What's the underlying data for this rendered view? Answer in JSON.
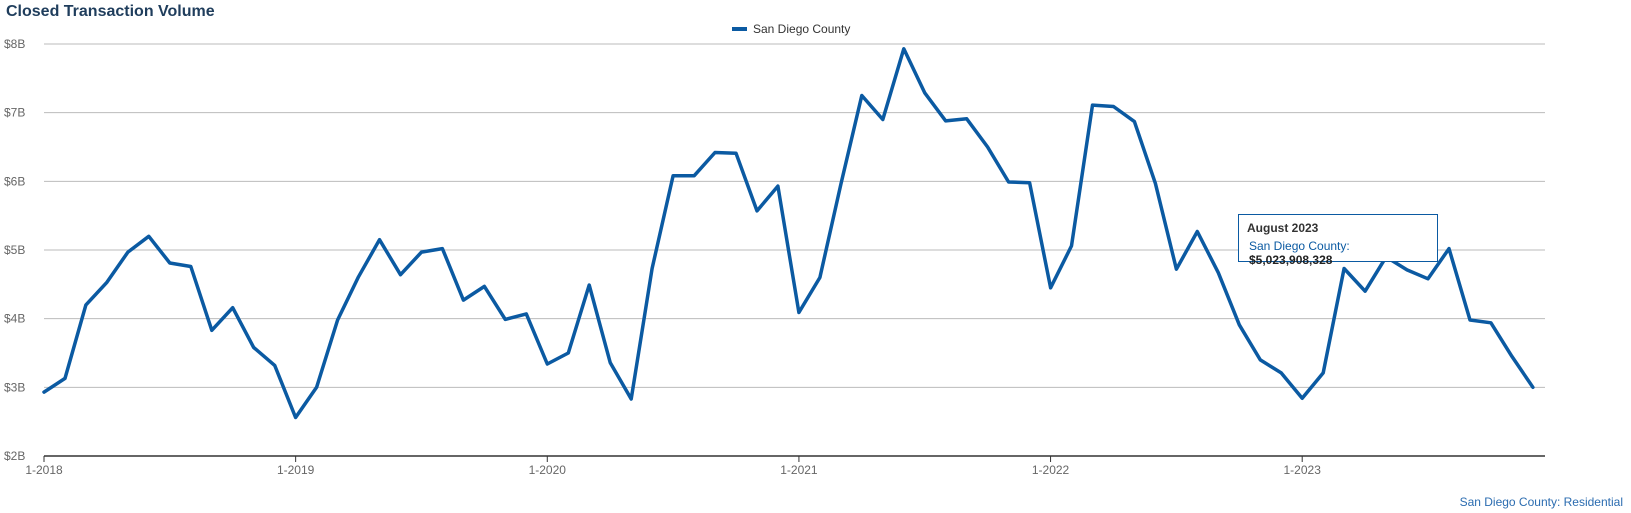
{
  "title": "Closed Transaction Volume",
  "source_note": "San Diego County: Residential",
  "colors": {
    "series": "#0b5aa2",
    "grid": "#bbbbbb",
    "axis": "#333333"
  },
  "tooltip": {
    "title": "August 2023",
    "series_label": "San Diego County:",
    "value": "$5,023,908,328"
  },
  "chart_data": {
    "type": "line",
    "legend_position": "top-center",
    "grid": true,
    "ylim": [
      2,
      8
    ],
    "y_unit": "billions USD",
    "y_ticks": [
      {
        "value": 2,
        "label": "$2B"
      },
      {
        "value": 3,
        "label": "$3B"
      },
      {
        "value": 4,
        "label": "$4B"
      },
      {
        "value": 5,
        "label": "$5B"
      },
      {
        "value": 6,
        "label": "$6B"
      },
      {
        "value": 7,
        "label": "$7B"
      },
      {
        "value": 8,
        "label": "$8B"
      }
    ],
    "x_ticks": [
      "1-2018",
      "1-2019",
      "1-2020",
      "1-2021",
      "1-2022",
      "1-2023"
    ],
    "x": [
      "1-2018",
      "2-2018",
      "3-2018",
      "4-2018",
      "5-2018",
      "6-2018",
      "7-2018",
      "8-2018",
      "9-2018",
      "10-2018",
      "11-2018",
      "12-2018",
      "1-2019",
      "2-2019",
      "3-2019",
      "4-2019",
      "5-2019",
      "6-2019",
      "7-2019",
      "8-2019",
      "9-2019",
      "10-2019",
      "11-2019",
      "12-2019",
      "1-2020",
      "2-2020",
      "3-2020",
      "4-2020",
      "5-2020",
      "6-2020",
      "7-2020",
      "8-2020",
      "9-2020",
      "10-2020",
      "11-2020",
      "12-2020",
      "1-2021",
      "2-2021",
      "3-2021",
      "4-2021",
      "5-2021",
      "6-2021",
      "7-2021",
      "8-2021",
      "9-2021",
      "10-2021",
      "11-2021",
      "12-2021",
      "1-2022",
      "2-2022",
      "3-2022",
      "4-2022",
      "5-2022",
      "6-2022",
      "7-2022",
      "8-2022",
      "9-2022",
      "10-2022",
      "11-2022",
      "12-2022",
      "1-2023",
      "2-2023",
      "3-2023",
      "4-2023",
      "5-2023",
      "6-2023",
      "7-2023",
      "8-2023",
      "9-2023",
      "10-2023",
      "11-2023",
      "12-2023"
    ],
    "series": [
      {
        "name": "San Diego County",
        "values": [
          2.93,
          3.13,
          4.2,
          4.53,
          4.97,
          5.2,
          4.81,
          4.76,
          3.83,
          4.16,
          3.58,
          3.32,
          2.56,
          3.0,
          3.98,
          4.61,
          5.15,
          4.64,
          4.97,
          5.02,
          4.27,
          4.47,
          3.99,
          4.07,
          3.34,
          3.5,
          4.49,
          3.36,
          2.83,
          4.73,
          6.08,
          6.08,
          6.42,
          6.41,
          5.57,
          5.93,
          4.09,
          4.6,
          5.96,
          7.25,
          6.9,
          7.93,
          7.29,
          6.88,
          6.91,
          6.5,
          5.99,
          5.98,
          4.45,
          5.06,
          7.11,
          7.09,
          6.87,
          5.97,
          4.72,
          5.27,
          4.67,
          3.91,
          3.4,
          3.21,
          2.84,
          3.21,
          4.73,
          4.4,
          4.9,
          4.71,
          4.58,
          5.02,
          3.98,
          3.94,
          3.45,
          3.0
        ]
      }
    ]
  }
}
